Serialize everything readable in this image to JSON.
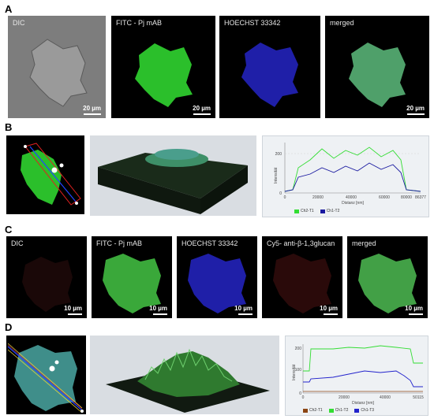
{
  "panels": {
    "A": {
      "letter": "A",
      "tiles": [
        {
          "label": "DIC",
          "scale": "20 µm"
        },
        {
          "label": "FITC - Pj mAB",
          "scale": "20 µm"
        },
        {
          "label": "HOECHST 33342",
          "scale": ""
        },
        {
          "label": "merged",
          "scale": "20 µm"
        }
      ]
    },
    "B": {
      "letter": "B",
      "chart": {
        "ylabel": "Intensität",
        "xlabel": "Distanz [nm]",
        "xticks": [
          "0",
          "20000",
          "40000",
          "60000",
          "80000",
          "86377"
        ],
        "yticks": [
          "0",
          "200"
        ],
        "legend": [
          {
            "name": "Ch2-T1",
            "color": "#33dd33"
          },
          {
            "name": "Ch1-T2",
            "color": "#1a1aa0"
          }
        ]
      }
    },
    "C": {
      "letter": "C",
      "tiles": [
        {
          "label": "DIC",
          "scale": "10 µm"
        },
        {
          "label": "FITC - Pj mAB",
          "scale": "10 µm"
        },
        {
          "label": "HOECHST 33342",
          "scale": "10 µm"
        },
        {
          "label": "Cy5- anti-β-1,3glucan",
          "scale": "10 µm"
        },
        {
          "label": "merged",
          "scale": "10 µm"
        }
      ]
    },
    "D": {
      "letter": "D",
      "chart": {
        "ylabel": "Intensität",
        "xlabel": "Distanz [nm]",
        "xticks": [
          "0",
          "20000",
          "40000",
          "50115"
        ],
        "yticks": [
          "0",
          "100",
          "200"
        ],
        "legend": [
          {
            "name": "Ch2-T1",
            "color": "#8b4513"
          },
          {
            "name": "Ch1-T2",
            "color": "#33dd33"
          },
          {
            "name": "Ch1-T3",
            "color": "#2222cc"
          }
        ]
      }
    }
  },
  "colors": {
    "fitc": "#2bbf2b",
    "hoechst": "#1f1fa8",
    "cy5": "#7a1a1a",
    "merged": "#4fa06a"
  }
}
